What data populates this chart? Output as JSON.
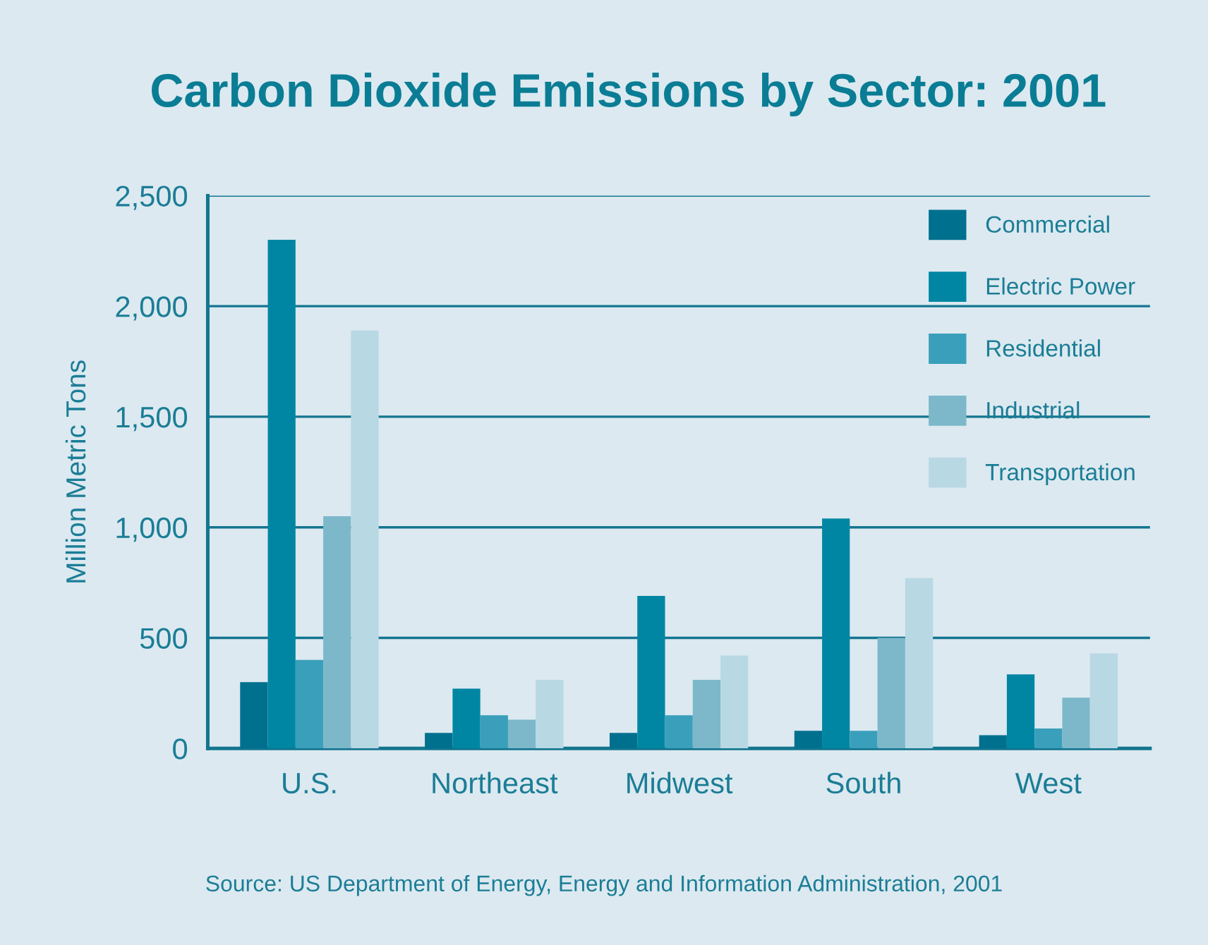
{
  "chart_data": {
    "type": "bar",
    "title": "Carbon Dioxide Emissions by Sector: 2001",
    "ylabel": "Million Metric Tons",
    "categories": [
      "U.S.",
      "Northeast",
      "Midwest",
      "South",
      "West"
    ],
    "series": [
      {
        "name": "Commercial",
        "color": "#00708f",
        "values": [
          300,
          70,
          70,
          80,
          60
        ]
      },
      {
        "name": "Electric Power",
        "color": "#0086a3",
        "values": [
          2300,
          270,
          690,
          1040,
          335
        ]
      },
      {
        "name": "Residential",
        "color": "#3a9fba",
        "values": [
          400,
          150,
          150,
          80,
          90
        ]
      },
      {
        "name": "Industrial",
        "color": "#7cb8ca",
        "values": [
          1050,
          130,
          310,
          500,
          230
        ]
      },
      {
        "name": "Transportation",
        "color": "#b8d8e4",
        "values": [
          1890,
          310,
          420,
          770,
          430
        ]
      }
    ],
    "ylim": [
      0,
      2500
    ],
    "yticks": [
      0,
      {
        "value": 500,
        "label": "500"
      },
      {
        "value": 1000,
        "label": "1,000"
      },
      {
        "value": 1500,
        "label": "1,500"
      },
      {
        "value": 2000,
        "label": "2,000"
      },
      {
        "value": 2500,
        "label": "2,500"
      }
    ],
    "grid": "y",
    "legend": "top right",
    "annotations": [
      "Source: US Department of Energy, Energy and Information Administration, 2001"
    ]
  }
}
